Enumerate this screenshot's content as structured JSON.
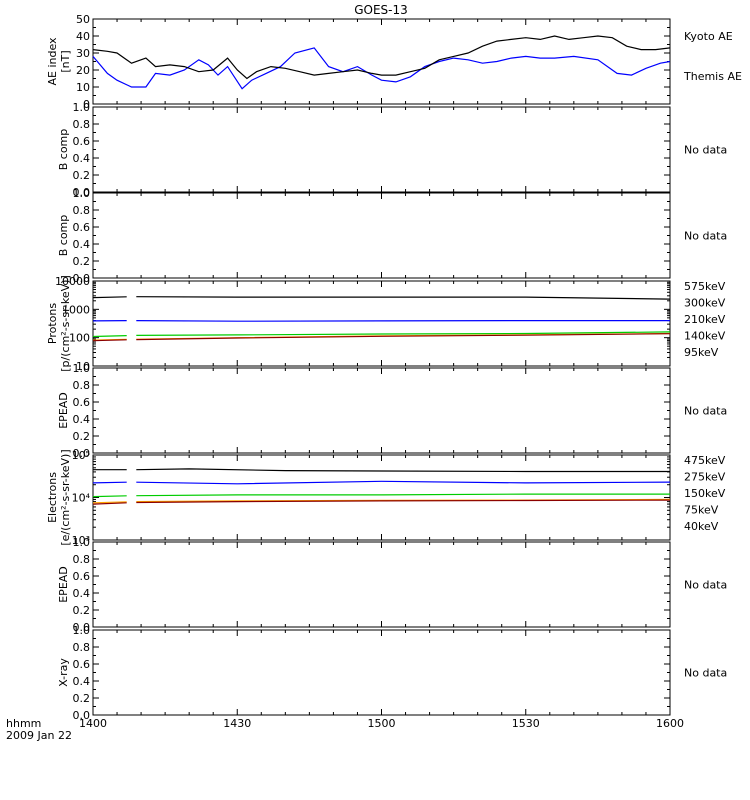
{
  "title": "GOES-13",
  "time_axis": {
    "label": "hhmm",
    "date": "2009 Jan 22",
    "range": [
      1400,
      1600
    ],
    "ticks": [
      {
        "t": 1400,
        "label": "1400"
      },
      {
        "t": 1430,
        "label": "1430"
      },
      {
        "t": 1500,
        "label": "1500"
      },
      {
        "t": 1530,
        "label": "1530"
      },
      {
        "t": 1600,
        "label": "1600"
      }
    ]
  },
  "chart_data": [
    {
      "type": "line",
      "ylabel": "AE index",
      "ylabel2": "[nT]",
      "ylim": [
        0,
        50
      ],
      "yticks": [
        {
          "v": 0,
          "label": "0"
        },
        {
          "v": 10,
          "label": "10"
        },
        {
          "v": 20,
          "label": "20"
        },
        {
          "v": 30,
          "label": "30"
        },
        {
          "v": 40,
          "label": "40"
        },
        {
          "v": 50,
          "label": "50"
        }
      ],
      "legend": [
        {
          "label": "Kyoto AE",
          "color": "#0000ff"
        },
        {
          "label": "Themis AE",
          "color": "#000000"
        }
      ],
      "series": [
        {
          "color": "#0000ff",
          "x": [
            1400,
            1403,
            1405,
            1408,
            1411,
            1413,
            1416,
            1419,
            1422,
            1424,
            1426,
            1428,
            1431,
            1433,
            1436,
            1439,
            1442,
            1446,
            1449,
            1452,
            1455,
            1458,
            1500,
            1503,
            1506,
            1509,
            1512,
            1515,
            1518,
            1521,
            1524,
            1527,
            1530,
            1533,
            1536,
            1540,
            1545,
            1549,
            1552,
            1555,
            1558,
            1600
          ],
          "y": [
            28,
            18,
            14,
            10,
            10,
            18,
            17,
            20,
            26,
            23,
            17,
            22,
            9,
            14,
            18,
            22,
            30,
            33,
            22,
            19,
            22,
            17,
            14,
            13,
            16,
            22,
            25,
            27,
            26,
            24,
            25,
            27,
            28,
            27,
            27,
            28,
            26,
            18,
            17,
            21,
            24,
            25
          ]
        },
        {
          "color": "#000000",
          "x": [
            1400,
            1403,
            1405,
            1408,
            1411,
            1413,
            1416,
            1419,
            1422,
            1425,
            1428,
            1430,
            1432,
            1434,
            1437,
            1440,
            1443,
            1446,
            1449,
            1452,
            1455,
            1458,
            1500,
            1503,
            1506,
            1509,
            1512,
            1515,
            1518,
            1521,
            1524,
            1527,
            1530,
            1533,
            1536,
            1539,
            1542,
            1545,
            1548,
            1551,
            1554,
            1557,
            1600
          ],
          "y": [
            32,
            31,
            30,
            24,
            27,
            22,
            23,
            22,
            19,
            20,
            27,
            20,
            15,
            19,
            22,
            21,
            19,
            17,
            18,
            19,
            20,
            18,
            17,
            17,
            19,
            21,
            26,
            28,
            30,
            34,
            37,
            38,
            39,
            38,
            40,
            38,
            39,
            40,
            39,
            34,
            32,
            32,
            33
          ]
        }
      ]
    },
    {
      "type": "line",
      "ylabel": "B comp",
      "ylim": [
        0,
        1
      ],
      "yticks": [
        {
          "v": 0,
          "label": "0.0"
        },
        {
          "v": 0.2,
          "label": "0.2"
        },
        {
          "v": 0.4,
          "label": "0.4"
        },
        {
          "v": 0.6,
          "label": "0.6"
        },
        {
          "v": 0.8,
          "label": "0.8"
        },
        {
          "v": 1,
          "label": "1.0"
        }
      ],
      "note": "No data",
      "series": []
    },
    {
      "type": "line",
      "ylabel": "B comp",
      "ylim": [
        0,
        1
      ],
      "yticks": [
        {
          "v": 0,
          "label": "0.0"
        },
        {
          "v": 0.2,
          "label": "0.2"
        },
        {
          "v": 0.4,
          "label": "0.4"
        },
        {
          "v": 0.6,
          "label": "0.6"
        },
        {
          "v": 0.8,
          "label": "0.8"
        },
        {
          "v": 1,
          "label": "1.0"
        }
      ],
      "note": "No data",
      "series": []
    },
    {
      "type": "line",
      "ylabel": "Protons",
      "ylabel2": "[p/(cm²-s-sr-keV)]",
      "yscale": "log",
      "ylim": [
        10,
        10000
      ],
      "yticks": [
        {
          "v": 10,
          "label": "10"
        },
        {
          "v": 100,
          "label": "100"
        },
        {
          "v": 1000,
          "label": "1000"
        },
        {
          "v": 10000,
          "label": "10000"
        }
      ],
      "legend": [
        {
          "label": "575keV",
          "color": "#8b0000"
        },
        {
          "label": "300keV",
          "color": "#ffa500"
        },
        {
          "label": "210keV",
          "color": "#00cc00"
        },
        {
          "label": "140keV",
          "color": "#0000ff"
        },
        {
          "label": "95keV",
          "color": "#000000"
        }
      ],
      "series": [
        {
          "color": "#000000",
          "x": [
            1400,
            1408,
            1430,
            1500,
            1530,
            1600
          ],
          "y": [
            2600,
            2800,
            2700,
            2700,
            2700,
            2300
          ]
        },
        {
          "color": "#0000ff",
          "x": [
            1400,
            1408,
            1430,
            1500,
            1530,
            1600
          ],
          "y": [
            390,
            400,
            380,
            390,
            400,
            400
          ]
        },
        {
          "color": "#00cc00",
          "x": [
            1400,
            1408,
            1430,
            1500,
            1530,
            1600
          ],
          "y": [
            110,
            120,
            125,
            135,
            140,
            160
          ]
        },
        {
          "color": "#ffa500",
          "x": [
            1400,
            1408,
            1430,
            1500,
            1530,
            1600
          ],
          "y": [
            82,
            88,
            100,
            115,
            125,
            140
          ]
        },
        {
          "color": "#8b0000",
          "x": [
            1400,
            1408,
            1430,
            1500,
            1530,
            1600
          ],
          "y": [
            78,
            85,
            97,
            112,
            122,
            138
          ]
        }
      ]
    },
    {
      "type": "line",
      "ylabel": "EPEAD",
      "ylim": [
        0,
        1
      ],
      "yticks": [
        {
          "v": 0,
          "label": "0.0"
        },
        {
          "v": 0.2,
          "label": "0.2"
        },
        {
          "v": 0.4,
          "label": "0.4"
        },
        {
          "v": 0.6,
          "label": "0.6"
        },
        {
          "v": 0.8,
          "label": "0.8"
        },
        {
          "v": 1,
          "label": "1.0"
        }
      ],
      "note": "No data",
      "series": []
    },
    {
      "type": "line",
      "ylabel": "Electrons",
      "ylabel2": "[e/(cm²-s-sr-keV)]",
      "yscale": "log",
      "ylim": [
        1000,
        100000
      ],
      "yticks": [
        {
          "v": 1000,
          "label": "10³"
        },
        {
          "v": 10000,
          "label": "10⁴"
        },
        {
          "v": 100000,
          "label": "10⁵"
        }
      ],
      "legend": [
        {
          "label": "475keV",
          "color": "#8b0000"
        },
        {
          "label": "275keV",
          "color": "#ffa500"
        },
        {
          "label": "150keV",
          "color": "#00cc00"
        },
        {
          "label": "75keV",
          "color": "#0000ff"
        },
        {
          "label": "40keV",
          "color": "#000000"
        }
      ],
      "series": [
        {
          "color": "#000000",
          "x": [
            1400,
            1408,
            1420,
            1440,
            1500,
            1530,
            1600
          ],
          "y": [
            45000,
            45000,
            47000,
            43000,
            42000,
            41000,
            41000
          ]
        },
        {
          "color": "#0000ff",
          "x": [
            1400,
            1408,
            1430,
            1500,
            1530,
            1600
          ],
          "y": [
            22000,
            23000,
            21000,
            24000,
            22000,
            23000
          ]
        },
        {
          "color": "#00cc00",
          "x": [
            1400,
            1408,
            1430,
            1500,
            1530,
            1600
          ],
          "y": [
            10500,
            11000,
            11500,
            11500,
            12000,
            12000
          ]
        },
        {
          "color": "#ffa500",
          "x": [
            1400,
            1408,
            1430,
            1500,
            1530,
            1600
          ],
          "y": [
            7500,
            8000,
            8300,
            8600,
            8700,
            9000
          ]
        },
        {
          "color": "#8b0000",
          "x": [
            1400,
            1408,
            1430,
            1500,
            1530,
            1600
          ],
          "y": [
            7000,
            7600,
            8000,
            8300,
            8500,
            8700
          ]
        }
      ]
    },
    {
      "type": "line",
      "ylabel": "EPEAD",
      "ylim": [
        0,
        1
      ],
      "yticks": [
        {
          "v": 0,
          "label": "0.0"
        },
        {
          "v": 0.2,
          "label": "0.2"
        },
        {
          "v": 0.4,
          "label": "0.4"
        },
        {
          "v": 0.6,
          "label": "0.6"
        },
        {
          "v": 0.8,
          "label": "0.8"
        },
        {
          "v": 1,
          "label": "1.0"
        }
      ],
      "note": "No data",
      "series": []
    },
    {
      "type": "line",
      "ylabel": "X-ray",
      "ylim": [
        0,
        1
      ],
      "yticks": [
        {
          "v": 0,
          "label": "0.0"
        },
        {
          "v": 0.2,
          "label": "0.2"
        },
        {
          "v": 0.4,
          "label": "0.4"
        },
        {
          "v": 0.6,
          "label": "0.6"
        },
        {
          "v": 0.8,
          "label": "0.8"
        },
        {
          "v": 1,
          "label": "1.0"
        }
      ],
      "note": "No data",
      "series": []
    }
  ]
}
